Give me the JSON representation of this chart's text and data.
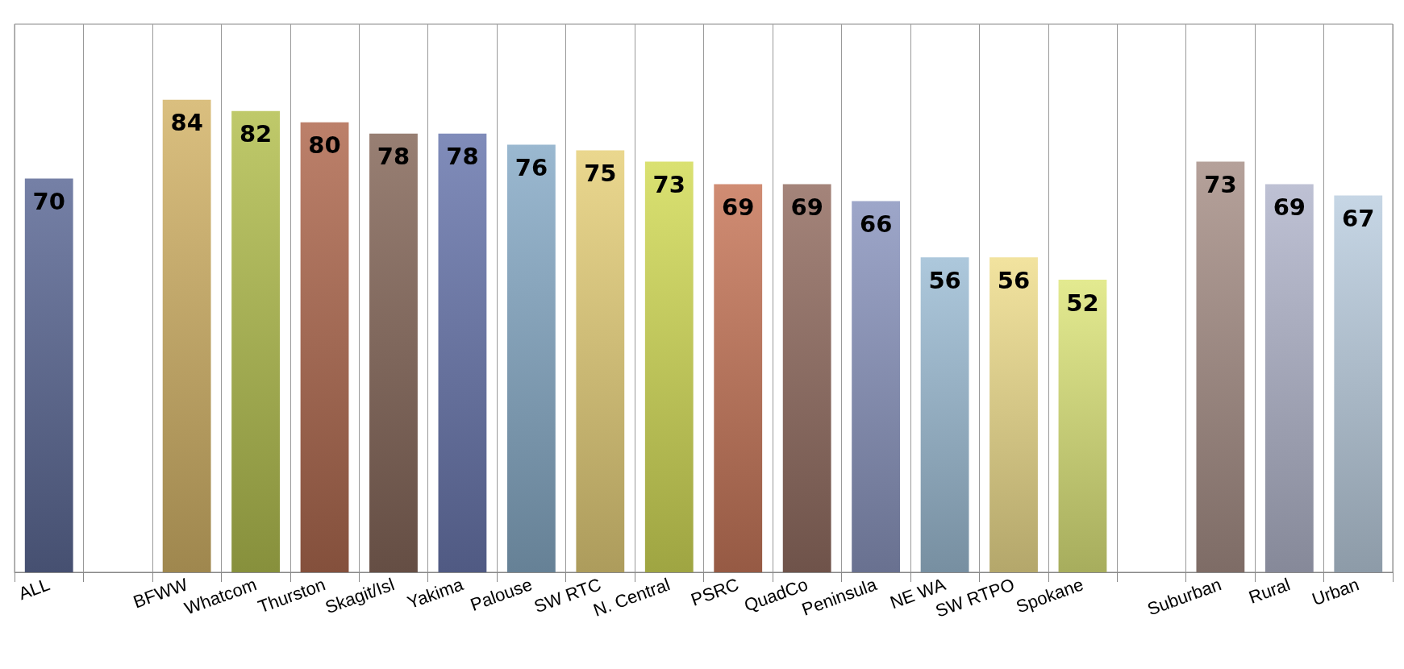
{
  "chart_data": {
    "type": "bar",
    "categories": [
      "ALL",
      null,
      "BFWW",
      "Whatcom",
      "Thurston",
      "Skagit/Isl",
      "Yakima",
      "Palouse",
      "SW RTC",
      "N. Central",
      "PSRC",
      "QuadCo",
      "Peninsula",
      "NE WA",
      "SW RTPO",
      "Spokane",
      null,
      "Suburban",
      "Rural",
      "Urban"
    ],
    "values": [
      70,
      null,
      84,
      82,
      80,
      78,
      78,
      76,
      75,
      73,
      69,
      69,
      66,
      56,
      56,
      52,
      null,
      73,
      69,
      67
    ],
    "colors": [
      "#5d6a96",
      null,
      "#d4b468",
      "#b4c050",
      "#b06a50",
      "#86685a",
      "#6a78ae",
      "#88acc8",
      "#e6d07a",
      "#d4dc58",
      "#c8785a",
      "#946e62",
      "#8c96c0",
      "#9ebed6",
      "#f0de8e",
      "#dee67c",
      null,
      "#a89088",
      "#b2b6cc",
      "#bccfe0"
    ],
    "data_labels": true,
    "grid": "x",
    "tick_labels": "x"
  }
}
